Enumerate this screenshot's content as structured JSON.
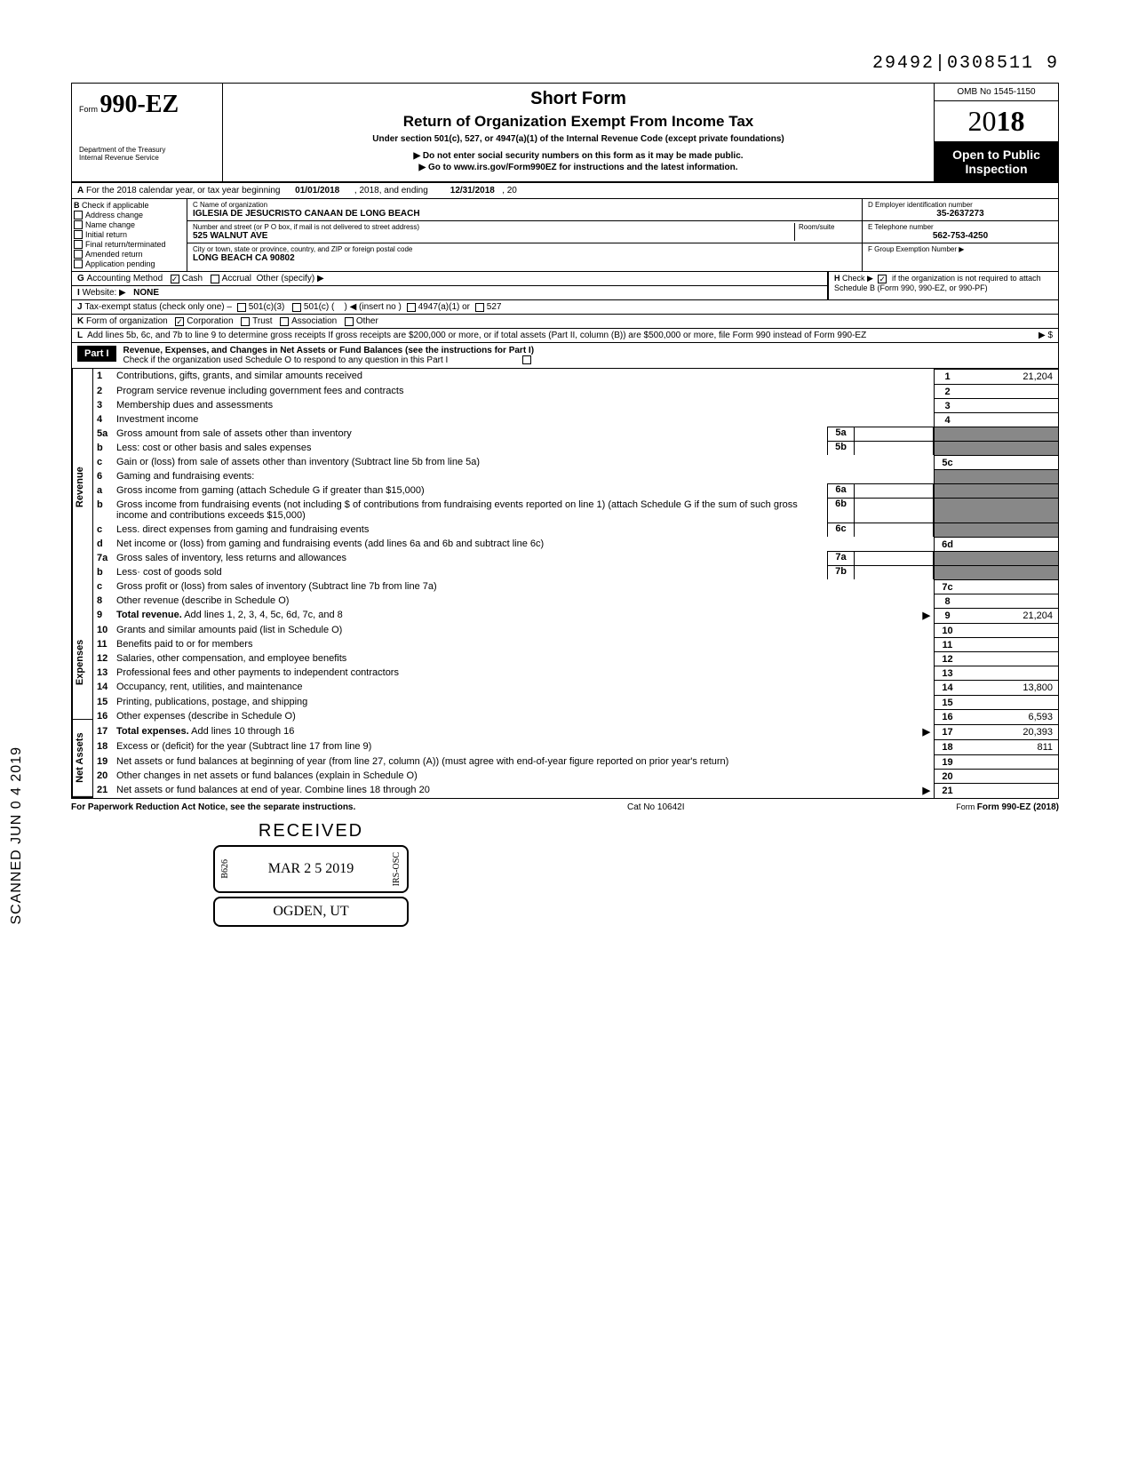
{
  "doc_id": "29492|0308511  9",
  "header": {
    "form_label": "Form",
    "form_number": "990-EZ",
    "dept": "Department of the Treasury\nInternal Revenue Service",
    "title": "Short Form",
    "subtitle": "Return of Organization Exempt From Income Tax",
    "under": "Under section 501(c), 527, or 4947(a)(1) of the Internal Revenue Code (except private foundations)",
    "note1": "▶ Do not enter social security numbers on this form as it may be made public.",
    "note2": "▶ Go to www.irs.gov/Form990EZ for instructions and the latest information.",
    "omb": "OMB No 1545-1150",
    "year_prefix": "20",
    "year_suffix": "18",
    "open": "Open to Public Inspection"
  },
  "line_a": {
    "prefix": "A",
    "text1": "For the 2018 calendar year, or tax year beginning",
    "begin": "01/01/2018",
    "text2": ", 2018, and ending",
    "end": "12/31/2018",
    "text3": ", 20"
  },
  "section_b": {
    "label": "B",
    "check_label": "Check if applicable",
    "items": [
      "Address change",
      "Name change",
      "Initial return",
      "Final return/terminated",
      "Amended return",
      "Application pending"
    ]
  },
  "section_c": {
    "name_label": "C Name of organization",
    "name": "IGLESIA DE JESUCRISTO CANAAN DE LONG BEACH",
    "street_label": "Number and street (or P O  box, if mail is not delivered to street address)",
    "room_label": "Room/suite",
    "street": "525 WALNUT AVE",
    "city_label": "City or town, state or province, country, and ZIP or foreign postal code",
    "city": "LONG BEACH CA 90802"
  },
  "section_d": {
    "ein_label": "D Employer identification number",
    "ein": "35-2637273",
    "tel_label": "E Telephone number",
    "tel": "562-753-4250",
    "grp_label": "F Group Exemption Number ▶"
  },
  "line_g": {
    "label": "G",
    "text": "Accounting Method",
    "cash": "Cash",
    "accrual": "Accrual",
    "other": "Other (specify) ▶"
  },
  "line_h": {
    "label": "H",
    "text": "Check ▶",
    "note": "if the organization is not required to attach Schedule B (Form 990, 990-EZ, or 990-PF)"
  },
  "line_i": {
    "label": "I",
    "text": "Website: ▶",
    "val": "NONE"
  },
  "line_j": {
    "label": "J",
    "text": "Tax-exempt status (check only one) –",
    "o1": "501(c)(3)",
    "o2": "501(c) (",
    "o3": ") ◀ (insert no )",
    "o4": "4947(a)(1) or",
    "o5": "527"
  },
  "line_k": {
    "label": "K",
    "text": "Form of organization",
    "o1": "Corporation",
    "o2": "Trust",
    "o3": "Association",
    "o4": "Other"
  },
  "line_l": {
    "label": "L",
    "text": "Add lines 5b, 6c, and 7b to line 9 to determine gross receipts  If gross receipts are $200,000 or more, or if total assets (Part II, column (B)) are $500,000 or more, file Form 990 instead of Form 990-EZ",
    "arrow": "▶  $"
  },
  "part1": {
    "badge": "Part I",
    "title": "Revenue, Expenses, and Changes in Net Assets or Fund Balances (see the instructions for Part I)",
    "check_line": "Check if the organization used Schedule O to respond to any question in this Part I"
  },
  "side_labels": {
    "rev": "Revenue",
    "exp": "Expenses",
    "net": "Net Assets"
  },
  "lines": {
    "1": {
      "n": "1",
      "d": "Contributions, gifts, grants, and similar amounts received",
      "box": "1",
      "amt": "21,204"
    },
    "2": {
      "n": "2",
      "d": "Program service revenue including government fees and contracts",
      "box": "2",
      "amt": ""
    },
    "3": {
      "n": "3",
      "d": "Membership dues and assessments",
      "box": "3",
      "amt": ""
    },
    "4": {
      "n": "4",
      "d": "Investment income",
      "box": "4",
      "amt": ""
    },
    "5a": {
      "n": "5a",
      "d": "Gross amount from sale of assets other than inventory",
      "mb": "5a"
    },
    "5b": {
      "n": "b",
      "d": "Less: cost or other basis and sales expenses",
      "mb": "5b"
    },
    "5c": {
      "n": "c",
      "d": "Gain or (loss) from sale of assets other than inventory (Subtract line 5b from line 5a)",
      "box": "5c",
      "amt": ""
    },
    "6": {
      "n": "6",
      "d": "Gaming and fundraising events:"
    },
    "6a": {
      "n": "a",
      "d": "Gross income from gaming (attach Schedule G if greater than $15,000)",
      "mb": "6a"
    },
    "6b": {
      "n": "b",
      "d": "Gross income from fundraising events (not including  $                      of contributions from fundraising events reported on line 1) (attach Schedule G if the sum of such gross income and contributions exceeds $15,000)",
      "mb": "6b"
    },
    "6c": {
      "n": "c",
      "d": "Less. direct expenses from gaming and fundraising events",
      "mb": "6c"
    },
    "6d": {
      "n": "d",
      "d": "Net income or (loss) from gaming and fundraising events (add lines 6a and 6b and subtract line 6c)",
      "box": "6d",
      "amt": ""
    },
    "7a": {
      "n": "7a",
      "d": "Gross sales of inventory, less returns and allowances",
      "mb": "7a"
    },
    "7b": {
      "n": "b",
      "d": "Less· cost of goods sold",
      "mb": "7b"
    },
    "7c": {
      "n": "c",
      "d": "Gross profit or (loss) from sales of inventory (Subtract line 7b from line 7a)",
      "box": "7c",
      "amt": ""
    },
    "8": {
      "n": "8",
      "d": "Other revenue (describe in Schedule O)",
      "box": "8",
      "amt": ""
    },
    "9": {
      "n": "9",
      "d": "Total revenue. Add lines 1, 2, 3, 4, 5c, 6d, 7c, and 8",
      "box": "9",
      "amt": "21,204",
      "bold": true,
      "arrow": true
    },
    "10": {
      "n": "10",
      "d": "Grants and similar amounts paid (list in Schedule O)",
      "box": "10",
      "amt": ""
    },
    "11": {
      "n": "11",
      "d": "Benefits paid to or for members",
      "box": "11",
      "amt": ""
    },
    "12": {
      "n": "12",
      "d": "Salaries, other compensation, and employee benefits",
      "box": "12",
      "amt": ""
    },
    "13": {
      "n": "13",
      "d": "Professional fees and other payments to independent contractors",
      "box": "13",
      "amt": ""
    },
    "14": {
      "n": "14",
      "d": "Occupancy, rent, utilities, and maintenance",
      "box": "14",
      "amt": "13,800"
    },
    "15": {
      "n": "15",
      "d": "Printing, publications, postage, and shipping",
      "box": "15",
      "amt": ""
    },
    "16": {
      "n": "16",
      "d": "Other expenses (describe in Schedule O)",
      "box": "16",
      "amt": "6,593"
    },
    "17": {
      "n": "17",
      "d": "Total expenses. Add lines 10 through 16",
      "box": "17",
      "amt": "20,393",
      "bold": true,
      "arrow": true
    },
    "18": {
      "n": "18",
      "d": "Excess or (deficit) for the year (Subtract line 17 from line 9)",
      "box": "18",
      "amt": "811"
    },
    "19": {
      "n": "19",
      "d": "Net assets or fund balances at beginning of year (from line 27, column (A)) (must agree with end-of-year figure reported on prior year's return)",
      "box": "19",
      "amt": ""
    },
    "20": {
      "n": "20",
      "d": "Other changes in net assets or fund balances (explain in Schedule O)",
      "box": "20",
      "amt": ""
    },
    "21": {
      "n": "21",
      "d": "Net assets or fund balances at end of year. Combine lines 18 through 20",
      "box": "21",
      "amt": "",
      "arrow": true
    }
  },
  "footer": {
    "left": "For Paperwork Reduction Act Notice, see the separate instructions.",
    "mid": "Cat No 10642I",
    "right": "Form 990-EZ (2018)"
  },
  "stamp": {
    "received": "RECEIVED",
    "left_code": "B626",
    "date": "MAR 2 5 2019",
    "right_code": "IRS-OSC",
    "ogden": "OGDEN, UT"
  },
  "scanned": "SCANNED JUN 0 4 2019"
}
